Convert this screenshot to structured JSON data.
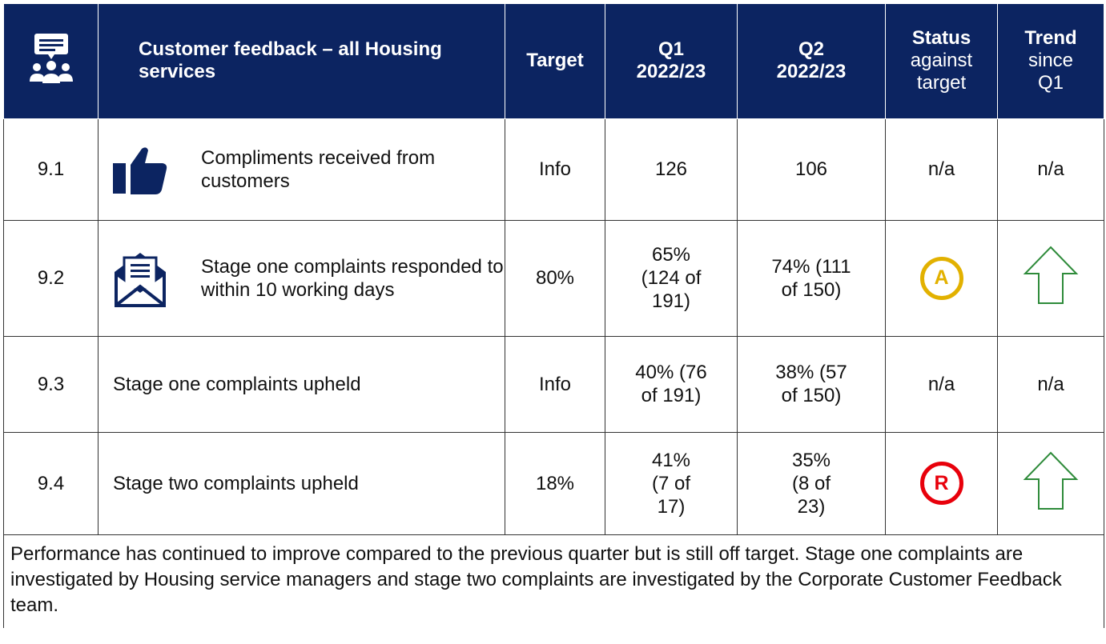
{
  "header": {
    "title": "Customer feedback – all Housing services",
    "columns": [
      {
        "label": "Target"
      },
      {
        "label": "Q1",
        "sub": "2022/23"
      },
      {
        "label": "Q2",
        "sub": "2022/23"
      },
      {
        "label": "Status",
        "sub": "against target"
      },
      {
        "label": "Trend",
        "sub": "since Q1"
      }
    ]
  },
  "rows": [
    {
      "id": "9.1",
      "description": "Compliments received from customers",
      "target": "Info",
      "q1": "126",
      "q2": "106",
      "status": "n/a",
      "trend": "n/a"
    },
    {
      "id": "9.2",
      "description": "Stage one complaints responded to within 10 working days",
      "target": "80%",
      "q1": "65% (124 of 191)",
      "q2": "74% (111 of 150)",
      "status": "A"
    },
    {
      "id": "9.3",
      "description": "Stage one complaints upheld",
      "target": "Info",
      "q1": "40% (76 of 191)",
      "q2": "38% (57 of 150)",
      "status": "n/a",
      "trend": "n/a"
    },
    {
      "id": "9.4",
      "description": "Stage two complaints upheld",
      "target": "18%",
      "q1": "41% (7 of 17)",
      "q2": "35% (8 of 23)",
      "status": "R"
    }
  ],
  "footer": "Performance has continued to improve compared to the previous quarter but is still off target. Stage one complaints are investigated by Housing service managers and stage two complaints are investigated by the Corporate Customer Feedback team."
}
